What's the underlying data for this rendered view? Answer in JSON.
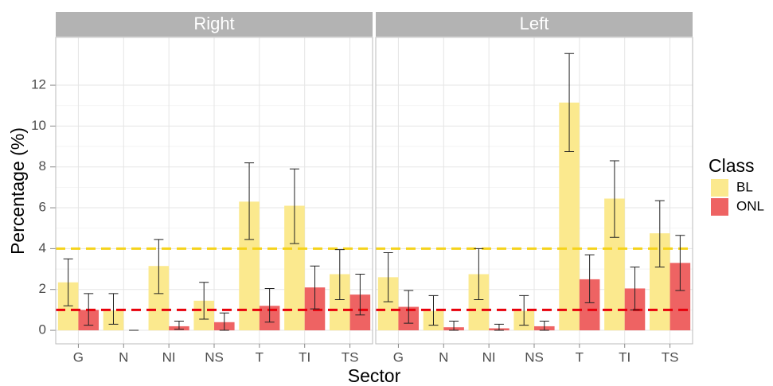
{
  "chart_data": {
    "type": "bar",
    "y_label": "Percentage (%)",
    "x_label": "Sector",
    "legend_title": "Class",
    "ylim": [
      -0.66,
      14.34
    ],
    "yticks": [
      0,
      2,
      4,
      6,
      8,
      10,
      12
    ],
    "grid": true,
    "categories": [
      "G",
      "N",
      "NI",
      "NS",
      "T",
      "TI",
      "TS"
    ],
    "legend": [
      {
        "name": "BL",
        "color": "#fbe98e"
      },
      {
        "name": "ONL",
        "color": "#ee6363"
      }
    ],
    "reference_lines": [
      {
        "value": 4,
        "color": "#f5d31c"
      },
      {
        "value": 1,
        "color": "#e8000b"
      }
    ],
    "panels": [
      {
        "title": "Right",
        "series": [
          {
            "values": [
              2.35,
              0.97,
              3.15,
              1.45,
              6.3,
              6.1,
              2.75
            ],
            "lower": [
              1.2,
              0.3,
              1.8,
              0.55,
              4.45,
              4.25,
              1.5
            ],
            "upper": [
              3.5,
              1.8,
              4.45,
              2.35,
              8.2,
              7.9,
              3.95
            ]
          },
          {
            "values": [
              1.0,
              0.0,
              0.2,
              0.4,
              1.2,
              2.1,
              1.75
            ],
            "lower": [
              0.25,
              0.0,
              0.05,
              0.0,
              0.4,
              1.05,
              0.75
            ],
            "upper": [
              1.8,
              0.0,
              0.45,
              0.85,
              2.05,
              3.15,
              2.75
            ]
          }
        ]
      },
      {
        "title": "Left",
        "series": [
          {
            "values": [
              2.6,
              0.95,
              2.75,
              0.95,
              11.15,
              6.45,
              4.75
            ],
            "lower": [
              1.4,
              0.25,
              1.5,
              0.25,
              8.75,
              4.55,
              3.1
            ],
            "upper": [
              3.8,
              1.7,
              4.0,
              1.7,
              13.55,
              8.3,
              6.35
            ]
          },
          {
            "values": [
              1.15,
              0.15,
              0.1,
              0.2,
              2.5,
              2.05,
              3.3
            ],
            "lower": [
              0.35,
              0.0,
              0.0,
              0.0,
              1.35,
              1.0,
              1.95
            ],
            "upper": [
              1.95,
              0.45,
              0.3,
              0.45,
              3.7,
              3.1,
              4.65
            ]
          }
        ]
      }
    ]
  }
}
